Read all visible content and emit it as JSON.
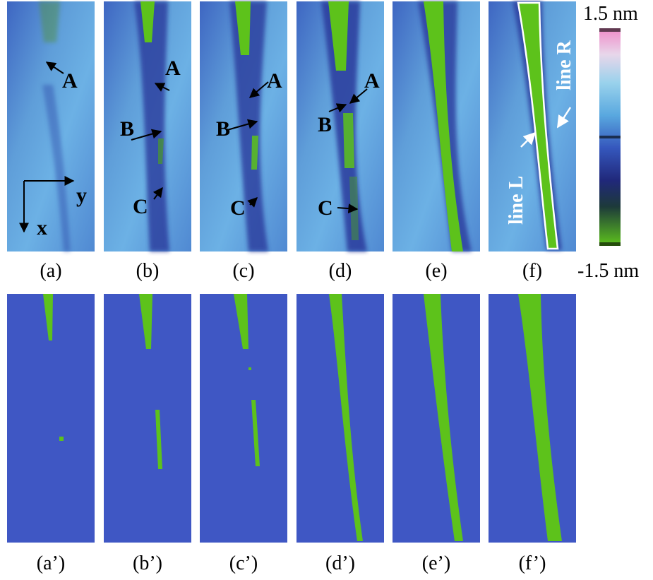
{
  "figure": {
    "top_row_captions": [
      "(a)",
      "(b)",
      "(c)",
      "(d)",
      "(e)",
      "(f)"
    ],
    "bottom_row_captions": [
      "(a’)",
      "(b’)",
      "(c’)",
      "(d’)",
      "(e’)",
      "(f’)"
    ],
    "colorbar": {
      "max_label": "1.5 nm",
      "min_label": "-1.5 nm",
      "colors_top_to_bottom": [
        "#f08ac8",
        "#d8e6f0",
        "#79c4e6",
        "#3f7fd0",
        "#2c3aa0",
        "#1a2a64",
        "#2f6a2a",
        "#5ec41c"
      ]
    },
    "axes": {
      "x_label": "x",
      "y_label": "y"
    },
    "point_labels": {
      "a": "A",
      "b": "B",
      "c": "C"
    },
    "line_labels": {
      "left": "line L",
      "right": "line R"
    },
    "colors": {
      "substrate_blue": "#3f57c4",
      "ridge_green": "#5dc21b",
      "surface_light": "#6aa8e0",
      "surface_dark": "#2b3c9a"
    }
  }
}
